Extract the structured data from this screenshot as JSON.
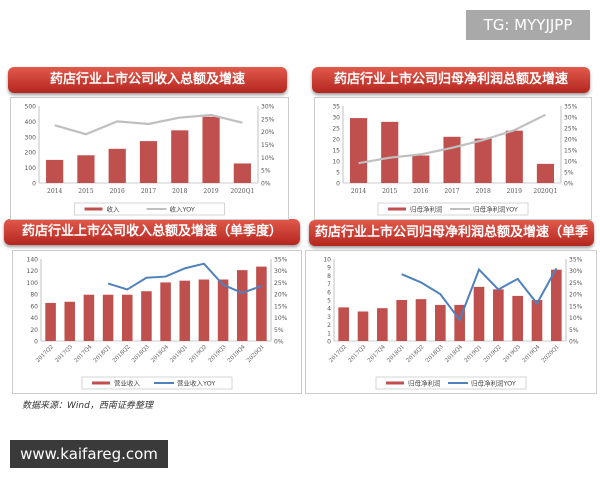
{
  "badge": "TG: MYYJJPP",
  "source": "数据来源：Wind，西南证券整理",
  "watermark": "www.kaifareg.com",
  "colors": {
    "bar": "#c0504d",
    "line_gray": "#bfbfbf",
    "line_blue": "#4f81bd",
    "title_bg": "#c0392b"
  },
  "chart_data": [
    {
      "type": "bar",
      "title": "药店行业上市公司收入总额及增速",
      "categories": [
        "2014",
        "2015",
        "2016",
        "2017",
        "2018",
        "2019",
        "2020Q1"
      ],
      "series": [
        {
          "name": "收入",
          "type": "bar",
          "values": [
            150,
            180,
            222,
            272,
            342,
            430,
            127
          ]
        },
        {
          "name": "收入YOY",
          "type": "line",
          "axis": "right",
          "values": [
            22.5,
            19,
            24,
            23,
            25.5,
            26.5,
            23.5
          ]
        }
      ],
      "ylim": [
        0,
        500
      ],
      "yticks": [
        0,
        100,
        200,
        300,
        400,
        500
      ],
      "y2lim": [
        0,
        30
      ],
      "y2ticks": [
        0,
        5,
        10,
        15,
        20,
        25,
        30
      ],
      "legend": "bottom",
      "line_color": "gray"
    },
    {
      "type": "bar",
      "title": "药店行业上市公司归母净利润总额及增速",
      "categories": [
        "2014",
        "2015",
        "2016",
        "2017",
        "2018",
        "2019",
        "2020Q1"
      ],
      "series": [
        {
          "name": "归母净利润",
          "type": "bar",
          "values": [
            29.5,
            27.8,
            12.5,
            21,
            20.2,
            23.8,
            8.7
          ]
        },
        {
          "name": "归母净利润YOY",
          "type": "line",
          "axis": "right",
          "values": [
            9,
            11.5,
            13,
            16,
            19.5,
            24,
            31
          ]
        }
      ],
      "ylim": [
        0,
        35
      ],
      "yticks": [
        0,
        5,
        10,
        15,
        20,
        25,
        30,
        35
      ],
      "y2lim": [
        0,
        35
      ],
      "y2ticks": [
        0,
        5,
        10,
        15,
        20,
        25,
        30,
        35
      ],
      "legend": "bottom",
      "line_color": "gray"
    },
    {
      "type": "bar",
      "title": "药店行业上市公司收入总额及增速（单季度）",
      "categories": [
        "2017Q2",
        "2017Q3",
        "2017Q4",
        "2018Q1",
        "2018Q2",
        "2018Q3",
        "2018Q4",
        "2019Q1",
        "2019Q2",
        "2019Q3",
        "2019Q4",
        "2020Q1"
      ],
      "series": [
        {
          "name": "营业收入",
          "type": "bar",
          "values": [
            65,
            67,
            79,
            79,
            79,
            85,
            100,
            103,
            105,
            105,
            121,
            127
          ]
        },
        {
          "name": "营业收入YOY",
          "type": "line",
          "axis": "right",
          "values": [
            null,
            null,
            null,
            24.5,
            22,
            27,
            27.5,
            31,
            33,
            24,
            20.5,
            23.5
          ]
        }
      ],
      "ylim": [
        0,
        140
      ],
      "yticks": [
        0,
        20,
        40,
        60,
        80,
        100,
        120,
        140
      ],
      "y2lim": [
        0,
        35
      ],
      "y2ticks": [
        0,
        5,
        10,
        15,
        20,
        25,
        30,
        35
      ],
      "legend": "bottom",
      "line_color": "blue"
    },
    {
      "type": "bar",
      "title": "药店行业上市公司归母净利润总额及增速（单季度）",
      "categories": [
        "2017Q2",
        "2017Q3",
        "2017Q4",
        "2018Q1",
        "2018Q2",
        "2018Q3",
        "2018Q4",
        "2019Q1",
        "2019Q2",
        "2019Q3",
        "2019Q4",
        "2020Q1"
      ],
      "series": [
        {
          "name": "归母净利润",
          "type": "bar",
          "values": [
            4.1,
            3.6,
            4.0,
            5.0,
            5.1,
            4.4,
            4.4,
            6.6,
            6.3,
            5.5,
            5.0,
            8.7
          ]
        },
        {
          "name": "归母净利润YOY",
          "type": "line",
          "axis": "right",
          "values": [
            null,
            null,
            null,
            28.5,
            25,
            20,
            9,
            30.5,
            22,
            26.5,
            16,
            31
          ]
        }
      ],
      "ylim": [
        0,
        10
      ],
      "yticks": [
        0,
        1,
        2,
        3,
        4,
        5,
        6,
        7,
        8,
        9,
        10
      ],
      "y2lim": [
        0,
        35
      ],
      "y2ticks": [
        0,
        5,
        10,
        15,
        20,
        25,
        30,
        35
      ],
      "legend": "bottom",
      "line_color": "blue"
    }
  ]
}
